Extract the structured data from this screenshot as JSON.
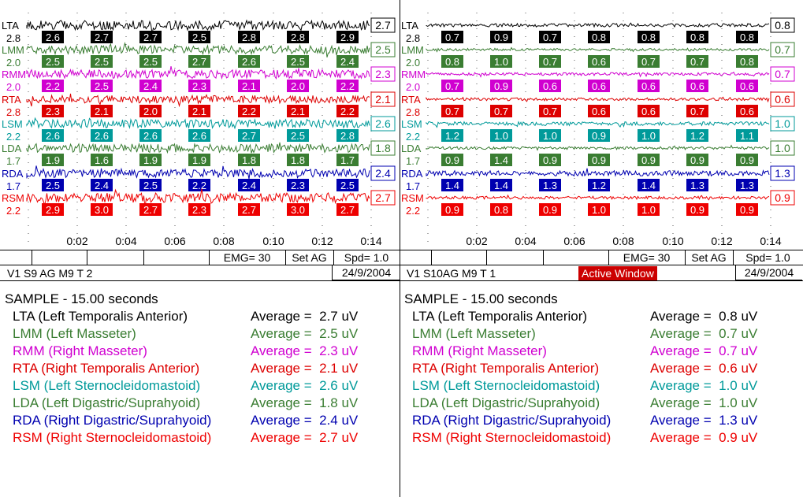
{
  "colors": {
    "LTA": "#000000",
    "LMM": "#3a7d32",
    "RMM": "#d000d0",
    "RTA": "#dd0000",
    "LSM": "#009a9a",
    "LDA": "#3a7d32",
    "RDA": "#0000b0",
    "RSM": "#ee0000",
    "active_bg": "#cc0000"
  },
  "panels": [
    {
      "id": "left",
      "time_ticks": [
        "0:02",
        "0:04",
        "0:06",
        "0:08",
        "0:10",
        "0:12",
        "0:14"
      ],
      "emg_label": "EMG= 30",
      "setag_label": "Set AG",
      "speed_label": "Spd= 1.0",
      "title": "V1 S9 AG M9  T 2",
      "active_label": "",
      "date": "24/9/2004",
      "sample_label": "SAMPLE - 15.00 seconds",
      "channels": [
        {
          "key": "LTA",
          "label": "LTA",
          "scale": "2.8",
          "avg_box": "2.7",
          "window_values": [
            "2.6",
            "2.7",
            "2.7",
            "2.5",
            "2.8",
            "2.8",
            "2.9"
          ],
          "full_name": "LTA (Left Temporalis Anterior)",
          "average_text": "Average =  2.7 uV",
          "noise": 1.0
        },
        {
          "key": "LMM",
          "label": "LMM",
          "scale": "2.0",
          "avg_box": "2.5",
          "window_values": [
            "2.5",
            "2.5",
            "2.5",
            "2.7",
            "2.6",
            "2.5",
            "2.4"
          ],
          "full_name": "LMM (Left Masseter)",
          "average_text": "Average =  2.5 uV",
          "noise": 0.9
        },
        {
          "key": "RMM",
          "label": "RMM",
          "scale": "2.0",
          "avg_box": "2.3",
          "window_values": [
            "2.2",
            "2.5",
            "2.4",
            "2.3",
            "2.1",
            "2.0",
            "2.2"
          ],
          "full_name": "RMM (Right Masseter)",
          "average_text": "Average =  2.3 uV",
          "noise": 0.9
        },
        {
          "key": "RTA",
          "label": "RTA",
          "scale": "2.8",
          "avg_box": "2.1",
          "window_values": [
            "2.3",
            "2.1",
            "2.0",
            "2.1",
            "2.2",
            "2.1",
            "2.2"
          ],
          "full_name": "RTA (Right Temporalis Anterior)",
          "average_text": "Average =  2.1 uV",
          "noise": 0.8
        },
        {
          "key": "LSM",
          "label": "LSM",
          "scale": "2.2",
          "avg_box": "2.6",
          "window_values": [
            "2.6",
            "2.6",
            "2.6",
            "2.6",
            "2.7",
            "2.5",
            "2.8"
          ],
          "full_name": "LSM (Left Sternocleidomastoid)",
          "average_text": "Average =  2.6 uV",
          "noise": 0.9
        },
        {
          "key": "LDA",
          "label": "LDA",
          "scale": "1.7",
          "avg_box": "1.8",
          "window_values": [
            "1.9",
            "1.6",
            "1.9",
            "1.9",
            "1.8",
            "1.8",
            "1.7"
          ],
          "full_name": "LDA (Left Digastric/Suprahyoid)",
          "average_text": "Average =  1.8 uV",
          "noise": 0.9
        },
        {
          "key": "RDA",
          "label": "RDA",
          "scale": "1.7",
          "avg_box": "2.4",
          "window_values": [
            "2.5",
            "2.4",
            "2.5",
            "2.2",
            "2.4",
            "2.3",
            "2.5"
          ],
          "full_name": "RDA (Right Digastric/Suprahyoid)",
          "average_text": "Average =  2.4 uV",
          "noise": 0.9
        },
        {
          "key": "RSM",
          "label": "RSM",
          "scale": "2.2",
          "avg_box": "2.7",
          "window_values": [
            "2.9",
            "3.0",
            "2.7",
            "2.3",
            "2.7",
            "3.0",
            "2.7"
          ],
          "full_name": "RSM (Right Sternocleidomastoid)",
          "average_text": "Average =  2.7 uV",
          "noise": 1.0
        }
      ]
    },
    {
      "id": "right",
      "time_ticks": [
        "0:02",
        "0:04",
        "0:06",
        "0:08",
        "0:10",
        "0:12",
        "0:14"
      ],
      "emg_label": "EMG= 30",
      "setag_label": "Set AG",
      "speed_label": "Spd= 1.0",
      "title": "V1 S10AG M9  T 1",
      "active_label": "Active Window",
      "date": "24/9/2004",
      "sample_label": "SAMPLE - 15.00 seconds",
      "channels": [
        {
          "key": "LTA",
          "label": "LTA",
          "scale": "2.8",
          "avg_box": "0.8",
          "window_values": [
            "0.7",
            "0.9",
            "0.7",
            "0.8",
            "0.8",
            "0.8",
            "0.8"
          ],
          "full_name": "LTA (Left Temporalis Anterior)",
          "average_text": "Average =  0.8 uV",
          "noise": 0.35
        },
        {
          "key": "LMM",
          "label": "LMM",
          "scale": "2.0",
          "avg_box": "0.7",
          "window_values": [
            "0.8",
            "1.0",
            "0.7",
            "0.6",
            "0.7",
            "0.7",
            "0.8"
          ],
          "full_name": "LMM (Left Masseter)",
          "average_text": "Average =  0.7 uV",
          "noise": 0.25
        },
        {
          "key": "RMM",
          "label": "RMM",
          "scale": "2.0",
          "avg_box": "0.7",
          "window_values": [
            "0.7",
            "0.9",
            "0.6",
            "0.6",
            "0.6",
            "0.6",
            "0.6"
          ],
          "full_name": "RMM (Right Masseter)",
          "average_text": "Average =  0.7 uV",
          "noise": 0.3
        },
        {
          "key": "RTA",
          "label": "RTA",
          "scale": "2.8",
          "avg_box": "0.6",
          "window_values": [
            "0.7",
            "0.7",
            "0.7",
            "0.6",
            "0.6",
            "0.7",
            "0.6"
          ],
          "full_name": "RTA (Right Temporalis Anterior)",
          "average_text": "Average =  0.6 uV",
          "noise": 0.3
        },
        {
          "key": "LSM",
          "label": "LSM",
          "scale": "2.2",
          "avg_box": "1.0",
          "window_values": [
            "1.2",
            "1.0",
            "1.0",
            "0.9",
            "1.0",
            "1.2",
            "1.1"
          ],
          "full_name": "LSM (Left Sternocleidomastoid)",
          "average_text": "Average =  1.0 uV",
          "noise": 0.4
        },
        {
          "key": "LDA",
          "label": "LDA",
          "scale": "1.7",
          "avg_box": "1.0",
          "window_values": [
            "0.9",
            "1.4",
            "0.9",
            "0.9",
            "0.9",
            "0.9",
            "0.9"
          ],
          "full_name": "LDA (Left Digastric/Suprahyoid)",
          "average_text": "Average =  1.0 uV",
          "noise": 0.3
        },
        {
          "key": "RDA",
          "label": "RDA",
          "scale": "1.7",
          "avg_box": "1.3",
          "window_values": [
            "1.4",
            "1.4",
            "1.3",
            "1.2",
            "1.4",
            "1.3",
            "1.3"
          ],
          "full_name": "RDA (Right Digastric/Suprahyoid)",
          "average_text": "Average =  1.3 uV",
          "noise": 0.55
        },
        {
          "key": "RSM",
          "label": "RSM",
          "scale": "2.2",
          "avg_box": "0.9",
          "window_values": [
            "0.9",
            "0.8",
            "0.9",
            "1.0",
            "1.0",
            "0.9",
            "0.9"
          ],
          "full_name": "RSM (Right Sternocleidomastoid)",
          "average_text": "Average =  0.9 uV",
          "noise": 0.3
        }
      ]
    }
  ]
}
